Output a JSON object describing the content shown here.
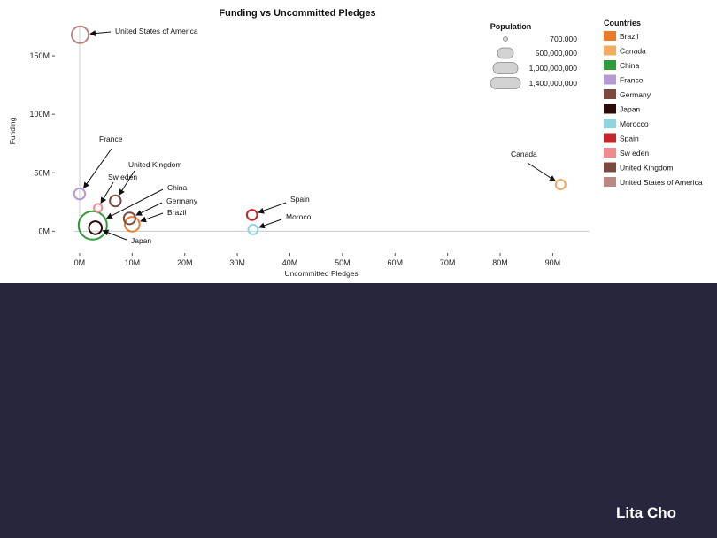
{
  "author": "Lita Cho",
  "chart_data": {
    "type": "scatter",
    "title": "Funding vs Uncommitted Pledges",
    "xlabel": "Uncommitted Pledges",
    "ylabel": "Funding",
    "xlim": [
      -1,
      97
    ],
    "ylim": [
      -5,
      175
    ],
    "x_ticks": [
      0,
      10,
      20,
      30,
      40,
      50,
      60,
      70,
      80,
      90
    ],
    "x_tick_labels": [
      "0M",
      "10M",
      "20M",
      "30M",
      "40M",
      "50M",
      "60M",
      "70M",
      "80M",
      "90M"
    ],
    "y_ticks": [
      0,
      50,
      100,
      150
    ],
    "y_tick_labels": [
      "0M",
      "50M",
      "100M",
      "150M"
    ],
    "grid": false,
    "points": [
      {
        "name": "United States of America",
        "x": 0.1,
        "y": 168,
        "population": 320000000,
        "color": "#b98882",
        "label": "United States of America"
      },
      {
        "name": "France",
        "x": 0,
        "y": 32,
        "population": 66000000,
        "color": "#b59ad1",
        "label": "France"
      },
      {
        "name": "Sweden",
        "x": 3.5,
        "y": 20,
        "population": 9700000,
        "color": "#f08a8d",
        "label": "Sw eden"
      },
      {
        "name": "United Kingdom",
        "x": 6.8,
        "y": 26,
        "population": 64000000,
        "color": "#7a4a3f",
        "label": "United Kingdom"
      },
      {
        "name": "China",
        "x": 2.5,
        "y": 5,
        "population": 1370000000,
        "color": "#2e9a3a",
        "label": "China"
      },
      {
        "name": "Japan",
        "x": 3,
        "y": 3,
        "population": 127000000,
        "color": "#2a0a0a",
        "label": "Japan"
      },
      {
        "name": "Germany",
        "x": 9.5,
        "y": 11,
        "population": 81000000,
        "color": "#7a4a3f",
        "label": "Germany"
      },
      {
        "name": "Brazil",
        "x": 10,
        "y": 6,
        "population": 204000000,
        "color": "#e87a2a",
        "label": "Brazil"
      },
      {
        "name": "Spain",
        "x": 32.8,
        "y": 14,
        "population": 47000000,
        "color": "#c0262c",
        "label": "Spain"
      },
      {
        "name": "Morocco",
        "x": 33,
        "y": 1.5,
        "population": 34000000,
        "color": "#8fd4df",
        "label": "Moroco"
      },
      {
        "name": "Canada",
        "x": 91.5,
        "y": 40,
        "population": 35000000,
        "color": "#f0a860",
        "label": "Canada"
      }
    ],
    "legend": {
      "title": "Countries",
      "placement": "right",
      "items": [
        {
          "label": "Brazil",
          "color": "#e87a2a"
        },
        {
          "label": "Canada",
          "color": "#f5aa62"
        },
        {
          "label": "China",
          "color": "#2e9a3a"
        },
        {
          "label": "France",
          "color": "#b59ad1"
        },
        {
          "label": "Germany",
          "color": "#7a4a3f"
        },
        {
          "label": "Japan",
          "color": "#2a0a0a"
        },
        {
          "label": "Morocco",
          "color": "#8fd4df"
        },
        {
          "label": "Spain",
          "color": "#c0262c"
        },
        {
          "label": "Sw eden",
          "color": "#f08a8d"
        },
        {
          "label": "United Kingdom",
          "color": "#7a4a3f"
        },
        {
          "label": "United States of America",
          "color": "#b98882"
        }
      ]
    },
    "size_legend": {
      "title": "Population",
      "placement": "top-right",
      "items": [
        {
          "label": "700,000",
          "value": 700000
        },
        {
          "label": "500,000,000",
          "value": 500000000
        },
        {
          "label": "1,000,000,000",
          "value": 1000000000
        },
        {
          "label": "1,400,000,000",
          "value": 1400000000
        }
      ]
    }
  }
}
